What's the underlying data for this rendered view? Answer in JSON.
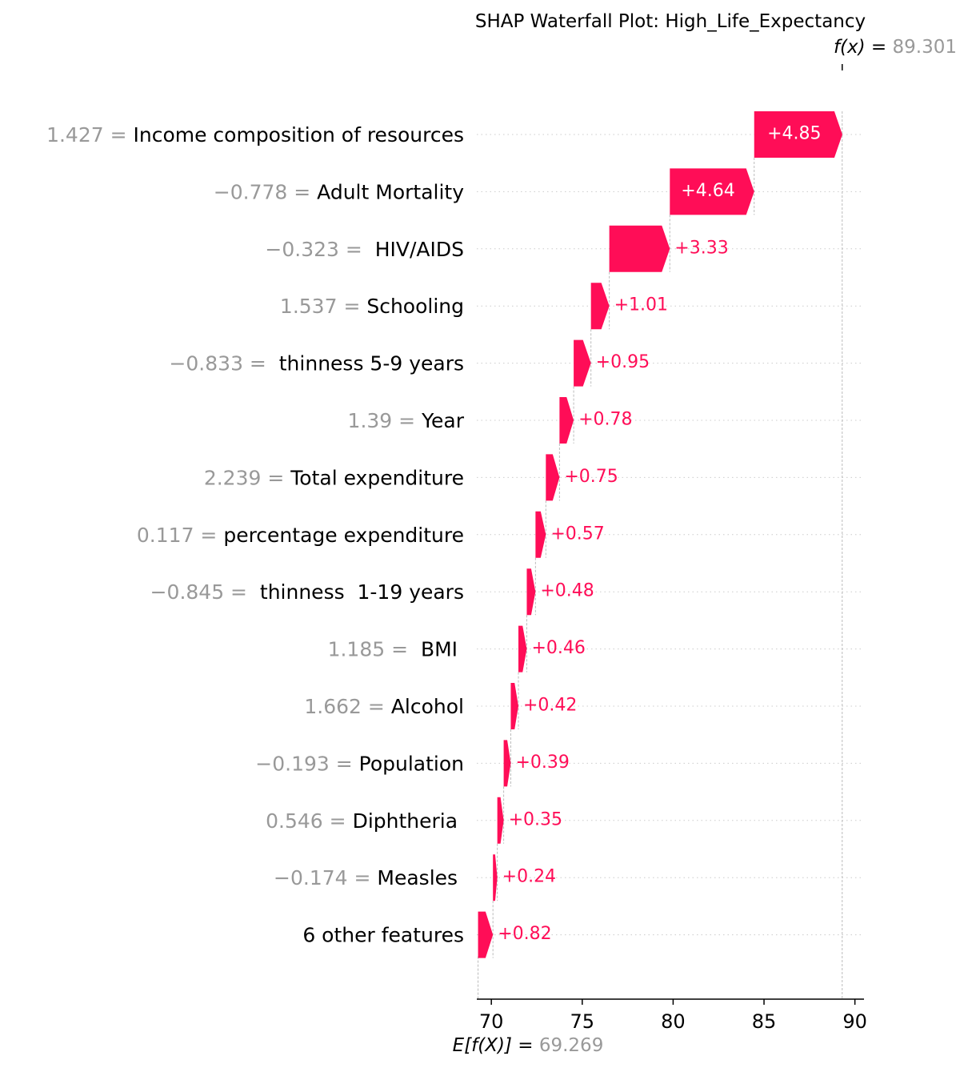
{
  "chart_data": {
    "type": "waterfall",
    "title": "SHAP Waterfall Plot: High_Life_Expectancy",
    "fx_label": "f(x) = ",
    "fx_value": "89.301",
    "fx": 89.301,
    "base_label": "E[f(X)] = ",
    "base_value_text": "69.269",
    "base_value": 69.269,
    "xlim": [
      69.2,
      90.5
    ],
    "xticks": [
      70,
      75,
      80,
      85,
      90
    ],
    "xtick_labels": [
      "70",
      "75",
      "80",
      "85",
      "90"
    ],
    "colors": {
      "positive": "#ff0d57",
      "value_gray": "#999999",
      "label": "#000000",
      "grid": "#cccccc"
    },
    "features": [
      {
        "value": "1.427 = ",
        "name": "Income composition of resources",
        "shap": 4.85,
        "label": "+4.85"
      },
      {
        "value": "−0.778 = ",
        "name": "Adult Mortality",
        "shap": 4.64,
        "label": "+4.64"
      },
      {
        "value": "−0.323 = ",
        "name": " HIV/AIDS",
        "shap": 3.33,
        "label": "+3.33"
      },
      {
        "value": "1.537 = ",
        "name": "Schooling",
        "shap": 1.01,
        "label": "+1.01"
      },
      {
        "value": "−0.833 = ",
        "name": " thinness 5-9 years",
        "shap": 0.95,
        "label": "+0.95"
      },
      {
        "value": "1.39 = ",
        "name": "Year",
        "shap": 0.78,
        "label": "+0.78"
      },
      {
        "value": "2.239 = ",
        "name": "Total expenditure",
        "shap": 0.75,
        "label": "+0.75"
      },
      {
        "value": "0.117 = ",
        "name": "percentage expenditure",
        "shap": 0.57,
        "label": "+0.57"
      },
      {
        "value": "−0.845 = ",
        "name": " thinness  1-19 years",
        "shap": 0.48,
        "label": "+0.48"
      },
      {
        "value": "1.185 = ",
        "name": " BMI ",
        "shap": 0.46,
        "label": "+0.46"
      },
      {
        "value": "1.662 = ",
        "name": "Alcohol",
        "shap": 0.42,
        "label": "+0.42"
      },
      {
        "value": "−0.193 = ",
        "name": "Population",
        "shap": 0.39,
        "label": "+0.39"
      },
      {
        "value": "0.546 = ",
        "name": "Diphtheria ",
        "shap": 0.35,
        "label": "+0.35"
      },
      {
        "value": "−0.174 = ",
        "name": "Measles ",
        "shap": 0.24,
        "label": "+0.24"
      },
      {
        "value": "",
        "name": "6 other features",
        "shap": 0.82,
        "label": "+0.82"
      }
    ]
  }
}
